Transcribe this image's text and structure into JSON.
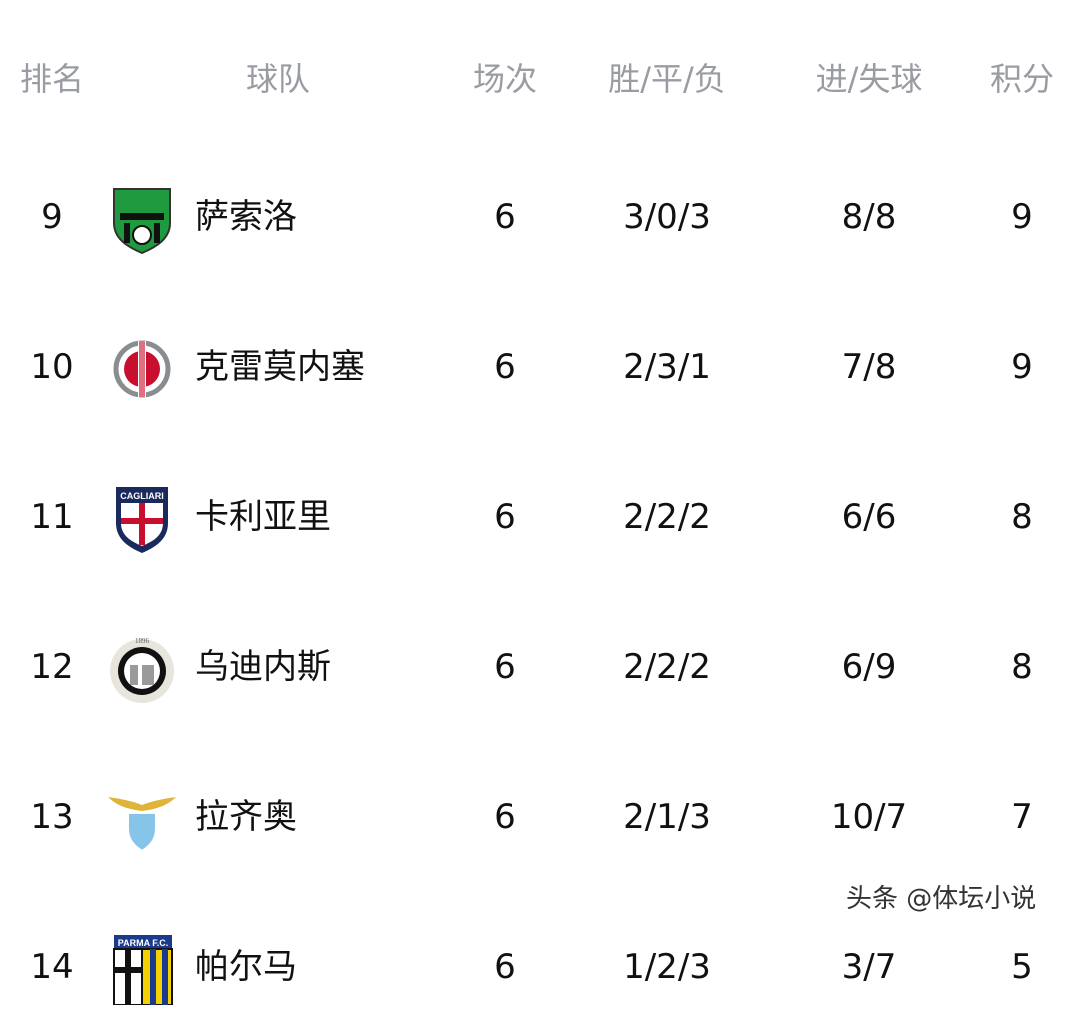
{
  "header": {
    "rank": "排名",
    "team": "球队",
    "played": "场次",
    "wdl": "胜/平/负",
    "goals": "进/失球",
    "points": "积分"
  },
  "rows": [
    {
      "rank": "9",
      "team": "萨索洛",
      "logo": "sassuolo-crest-icon",
      "logo_colors": [
        "#1f9a3f",
        "#111111"
      ],
      "played": "6",
      "wdl": "3/0/3",
      "goals": "8/8",
      "points": "9"
    },
    {
      "rank": "10",
      "team": "克雷莫内塞",
      "logo": "cremonese-crest-icon",
      "logo_colors": [
        "#c8102e",
        "#8a8d8f"
      ],
      "played": "6",
      "wdl": "2/3/1",
      "goals": "7/8",
      "points": "9"
    },
    {
      "rank": "11",
      "team": "卡利亚里",
      "logo": "cagliari-crest-icon",
      "logo_text": "CAGLIARI",
      "logo_colors": [
        "#1b2a5c",
        "#c8102e"
      ],
      "played": "6",
      "wdl": "2/2/2",
      "goals": "6/6",
      "points": "8"
    },
    {
      "rank": "12",
      "team": "乌迪内斯",
      "logo": "udinese-crest-icon",
      "logo_text": "1896",
      "logo_colors": [
        "#9a9a9a",
        "#111111"
      ],
      "played": "6",
      "wdl": "2/2/2",
      "goals": "6/9",
      "points": "8"
    },
    {
      "rank": "13",
      "team": "拉齐奥",
      "logo": "lazio-crest-icon",
      "logo_colors": [
        "#e0b43a",
        "#87c4ea"
      ],
      "played": "6",
      "wdl": "2/1/3",
      "goals": "10/7",
      "points": "7"
    },
    {
      "rank": "14",
      "team": "帕尔马",
      "logo": "parma-crest-icon",
      "logo_text": "PARMA F.C.",
      "logo_colors": [
        "#f5d000",
        "#1b3a8c"
      ],
      "played": "6",
      "wdl": "1/2/3",
      "goals": "3/7",
      "points": "5"
    }
  ],
  "watermark": "头条 @体坛小说"
}
